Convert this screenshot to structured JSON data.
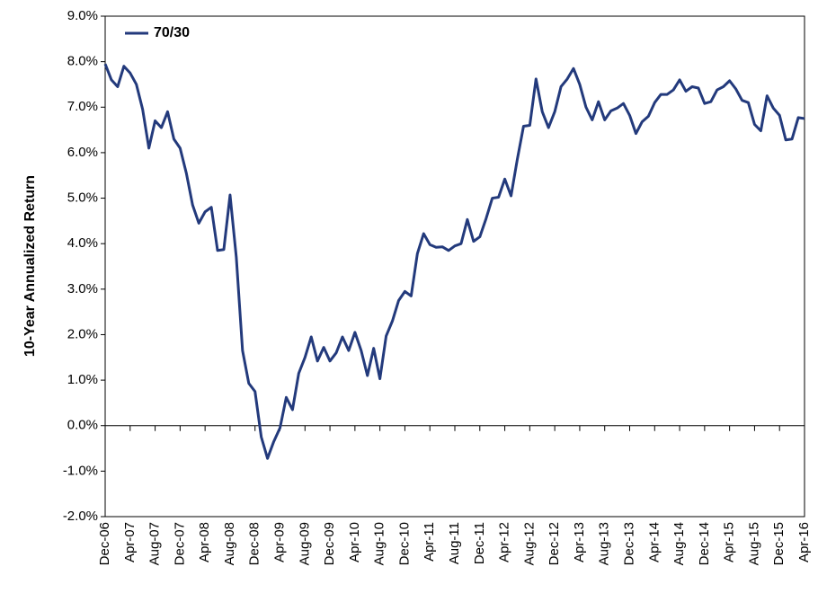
{
  "chart_data": {
    "type": "line",
    "y_label": "10-Year Annualized Return",
    "categories": [
      "Dec-06",
      null,
      null,
      null,
      "Apr-07",
      null,
      null,
      null,
      "Aug-07",
      null,
      null,
      null,
      "Dec-07",
      null,
      null,
      null,
      "Apr-08",
      null,
      null,
      null,
      "Aug-08",
      null,
      null,
      null,
      "Dec-08",
      null,
      null,
      null,
      "Apr-09",
      null,
      null,
      null,
      "Aug-09",
      null,
      null,
      null,
      "Dec-09",
      null,
      null,
      null,
      "Apr-10",
      null,
      null,
      null,
      "Aug-10",
      null,
      null,
      null,
      "Dec-10",
      null,
      null,
      null,
      "Apr-11",
      null,
      null,
      null,
      "Aug-11",
      null,
      null,
      null,
      "Dec-11",
      null,
      null,
      null,
      "Apr-12",
      null,
      null,
      null,
      "Aug-12",
      null,
      null,
      null,
      "Dec-12",
      null,
      null,
      null,
      "Apr-13",
      null,
      null,
      null,
      "Aug-13",
      null,
      null,
      null,
      "Dec-13",
      null,
      null,
      null,
      "Apr-14",
      null,
      null,
      null,
      "Aug-14",
      null,
      null,
      null,
      "Dec-14",
      null,
      null,
      null,
      "Apr-15",
      null,
      null,
      null,
      "Aug-15",
      null,
      null,
      null,
      "Dec-15",
      null,
      null,
      null,
      "Apr-16"
    ],
    "series": [
      {
        "name": "70/30",
        "color": "#233a7c",
        "values": [
          7.95,
          7.6,
          7.45,
          7.9,
          7.75,
          7.5,
          6.95,
          6.1,
          6.7,
          6.55,
          6.9,
          6.3,
          6.1,
          5.55,
          4.85,
          4.45,
          4.7,
          4.8,
          3.85,
          3.87,
          5.07,
          3.7,
          1.65,
          0.93,
          0.75,
          -0.25,
          -0.72,
          -0.35,
          -0.05,
          0.62,
          0.35,
          1.15,
          1.5,
          1.95,
          1.42,
          1.72,
          1.42,
          1.6,
          1.95,
          1.65,
          2.05,
          1.65,
          1.1,
          1.7,
          1.03,
          1.97,
          2.3,
          2.75,
          2.95,
          2.85,
          3.78,
          4.22,
          3.98,
          3.92,
          3.93,
          3.85,
          3.95,
          4.0,
          4.53,
          4.05,
          4.15,
          4.55,
          5.0,
          5.02,
          5.42,
          5.05,
          5.85,
          6.58,
          6.6,
          7.62,
          6.9,
          6.55,
          6.9,
          7.45,
          7.62,
          7.85,
          7.5,
          7.0,
          6.72,
          7.12,
          6.72,
          6.92,
          6.98,
          7.08,
          6.82,
          6.42,
          6.68,
          6.8,
          7.1,
          7.28,
          7.28,
          7.38,
          7.6,
          7.35,
          7.45,
          7.42,
          7.08,
          7.12,
          7.38,
          7.45,
          7.58,
          7.4,
          7.15,
          7.1,
          6.62,
          6.48,
          7.25,
          6.98,
          6.82,
          6.28,
          6.3,
          6.77,
          6.75
        ]
      }
    ],
    "ylim": [
      -2,
      9
    ],
    "yticks": [
      {
        "value": -2,
        "label": "-2.0%"
      },
      {
        "value": -1,
        "label": "-1.0%"
      },
      {
        "value": 0,
        "label": "0.0%"
      },
      {
        "value": 1,
        "label": "1.0%"
      },
      {
        "value": 2,
        "label": "2.0%"
      },
      {
        "value": 3,
        "label": "3.0%"
      },
      {
        "value": 4,
        "label": "4.0%"
      },
      {
        "value": 5,
        "label": "5.0%"
      },
      {
        "value": 6,
        "label": "6.0%"
      },
      {
        "value": 7,
        "label": "7.0%"
      },
      {
        "value": 8,
        "label": "8.0%"
      },
      {
        "value": 9,
        "label": "9.0%"
      }
    ],
    "grid": false,
    "legend": "upper left"
  }
}
